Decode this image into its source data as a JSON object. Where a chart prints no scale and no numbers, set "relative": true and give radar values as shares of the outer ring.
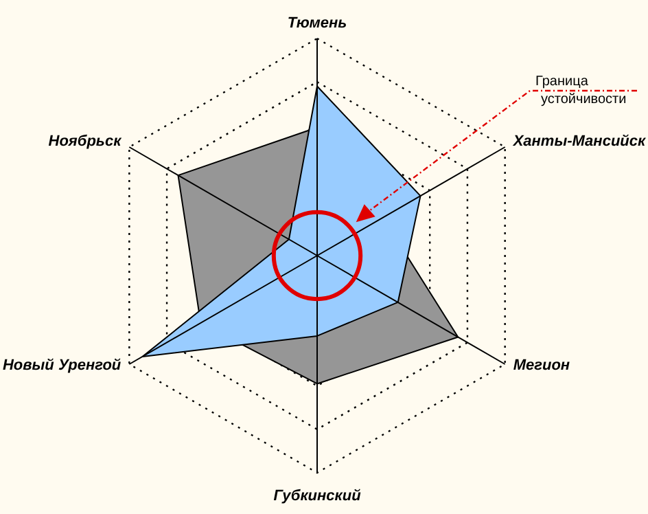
{
  "chart_data": {
    "type": "radar",
    "relative": true,
    "grid": true,
    "categories": [
      "Тюмень",
      "Ханты-Мансийск",
      "Мегион",
      "Губкинский",
      "Новый Уренгой",
      "Ноябрьск"
    ],
    "series": [
      {
        "color": "#969696",
        "values": [
          0.59,
          0.35,
          0.75,
          0.59,
          0.62,
          0.74
        ]
      },
      {
        "color": "#99ccff",
        "values": [
          0.78,
          0.55,
          0.43,
          0.37,
          0.93,
          0.15
        ]
      }
    ],
    "annotations": [
      "Граница устойчивости"
    ]
  }
}
